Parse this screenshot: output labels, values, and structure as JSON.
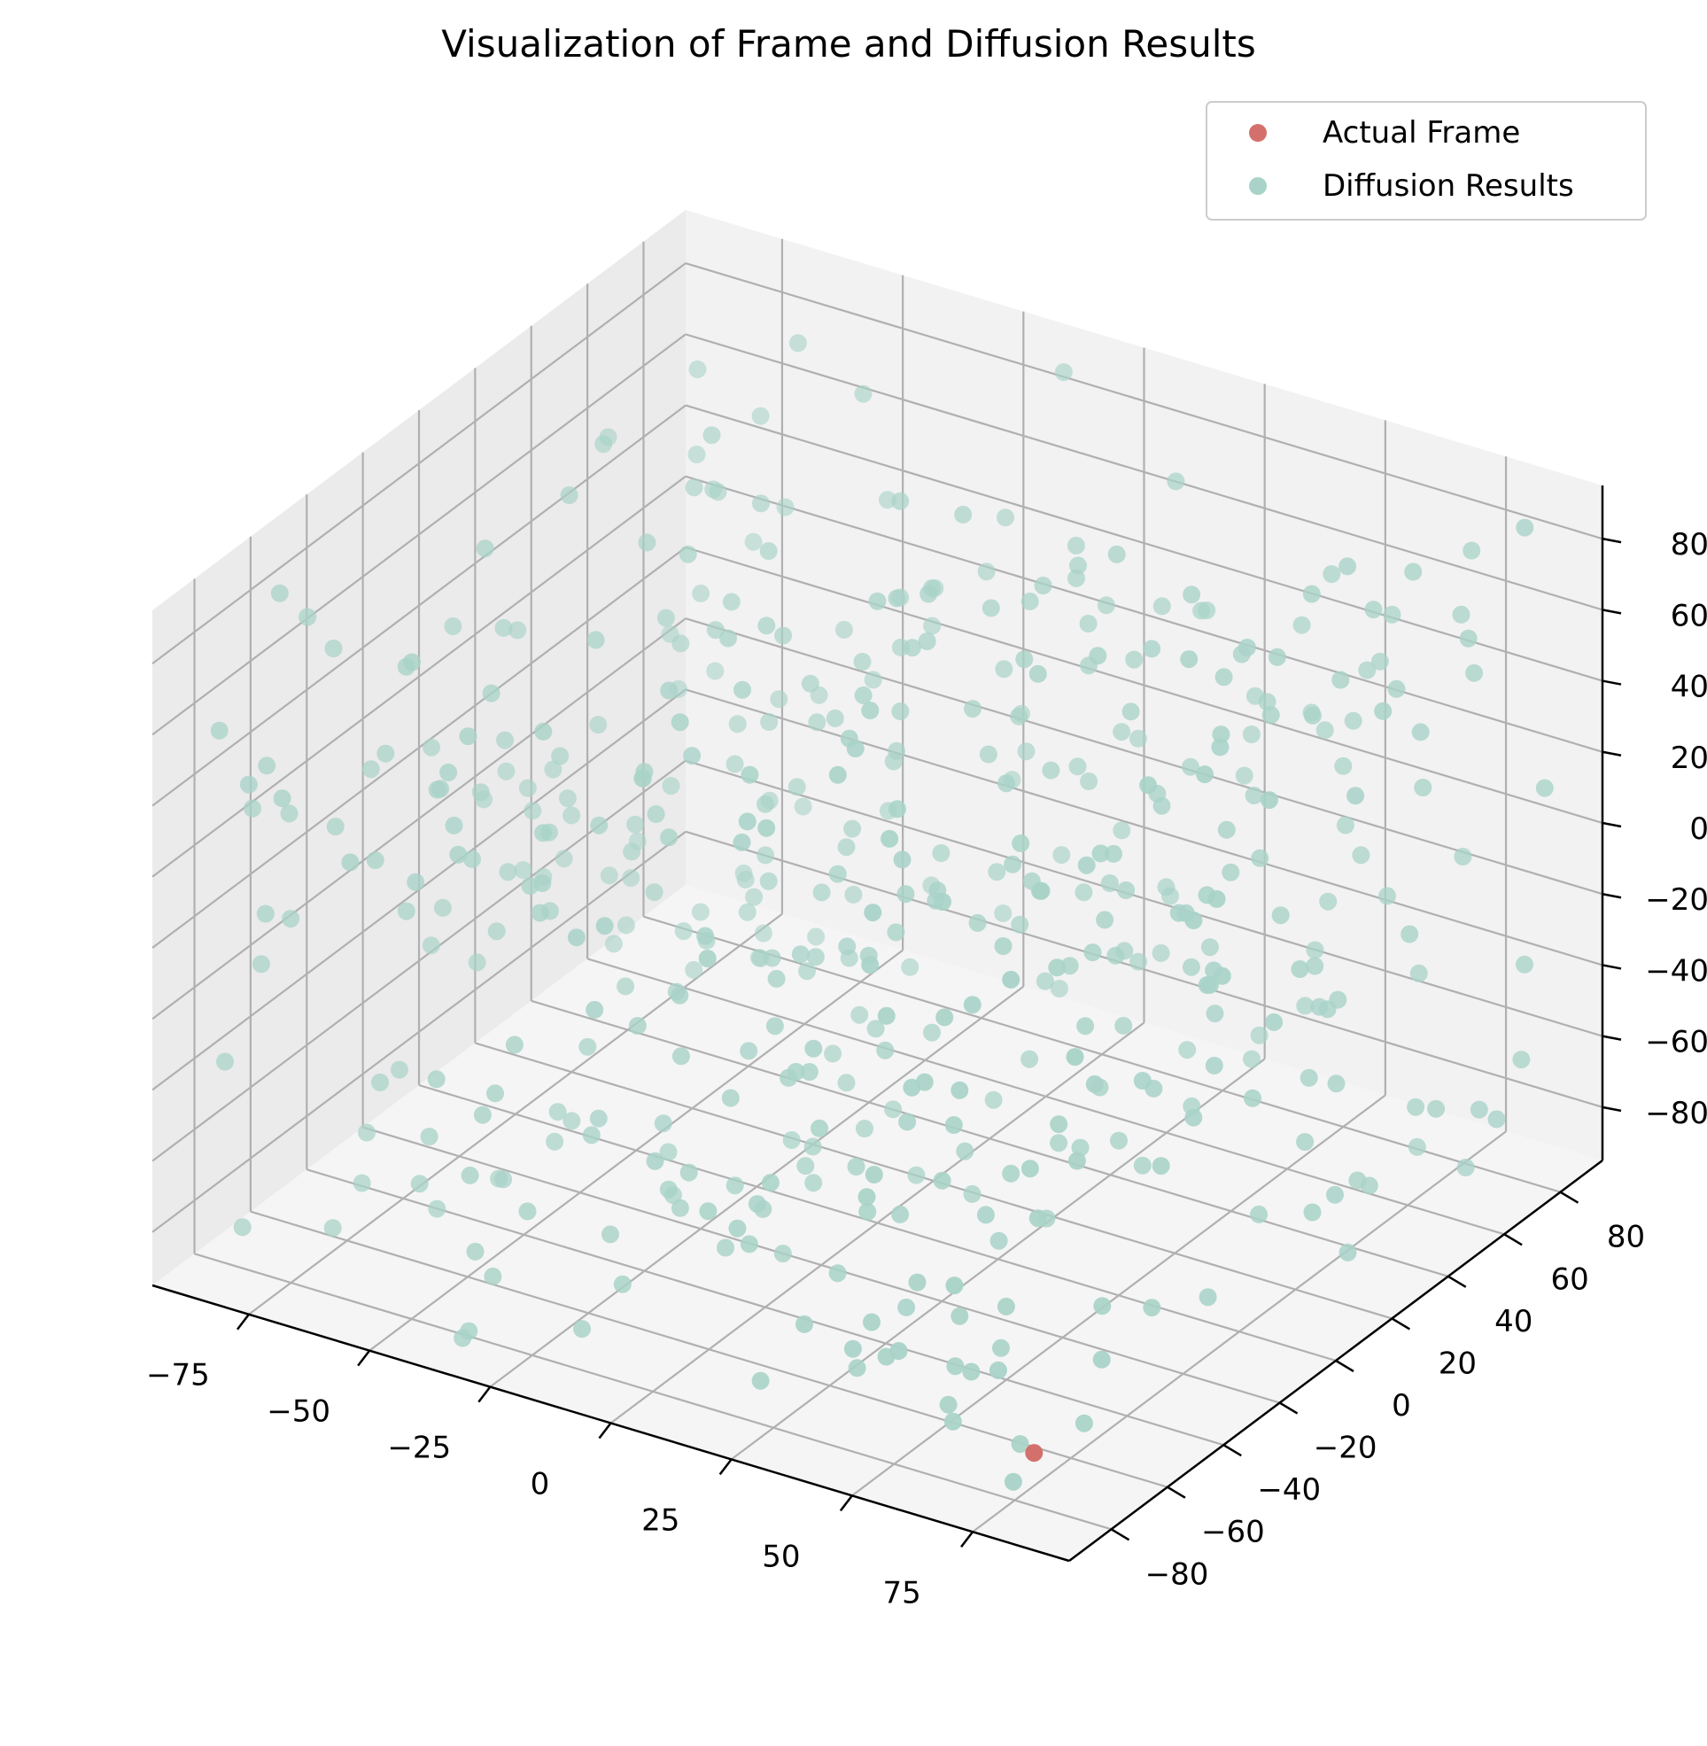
{
  "chart_data": {
    "type": "scatter",
    "projection": "3d",
    "title": "Visualization of Frame and Diffusion Results",
    "xlabel": "",
    "ylabel": "",
    "zlabel": "",
    "xlim": [
      -95,
      95
    ],
    "ylim": [
      -95,
      95
    ],
    "zlim": [
      -95,
      95
    ],
    "x_ticks": [
      -75,
      -50,
      -25,
      0,
      25,
      50,
      75
    ],
    "x_tick_labels": [
      "−75",
      "−50",
      "−25",
      "0",
      "25",
      "50",
      "75"
    ],
    "y_ticks": [
      -80,
      -60,
      -40,
      -20,
      0,
      20,
      40,
      60,
      80
    ],
    "y_tick_labels": [
      "−80",
      "−60",
      "−40",
      "−20",
      "0",
      "20",
      "40",
      "60",
      "80"
    ],
    "z_ticks": [
      -80,
      -60,
      -40,
      -20,
      0,
      20,
      40,
      60,
      80
    ],
    "z_tick_labels": [
      "−80",
      "−60",
      "−40",
      "−20",
      "0",
      "20",
      "40",
      "60",
      "80"
    ],
    "grid": true,
    "legend_position": "top-right",
    "colors": {
      "actual": "#d4706b",
      "diffusion": "#a9d3c8",
      "pane_back": "#f2f2f2",
      "pane_side": "#ebebeb",
      "pane_floor": "#f5f5f5",
      "grid": "#b0b0b0"
    },
    "series": [
      {
        "name": "Actual Frame",
        "color": "#d4706b",
        "count": 1,
        "points": [
          [
            72,
            -68,
            -90
          ]
        ]
      },
      {
        "name": "Diffusion Results",
        "color": "#a9d3c8",
        "count": 500,
        "distribution": "uniform random in [-90, 90] on each axis (individual positions not recoverable)",
        "points_sample": [
          [
            0,
            0,
            80
          ],
          [
            -40,
            30,
            60
          ],
          [
            55,
            -20,
            40
          ],
          [
            -70,
            10,
            -10
          ],
          [
            30,
            60,
            10
          ],
          [
            10,
            -60,
            -50
          ],
          [
            -20,
            -40,
            -70
          ],
          [
            70,
            40,
            -30
          ],
          [
            -55,
            -70,
            20
          ],
          [
            45,
            75,
            -60
          ]
        ]
      }
    ]
  }
}
